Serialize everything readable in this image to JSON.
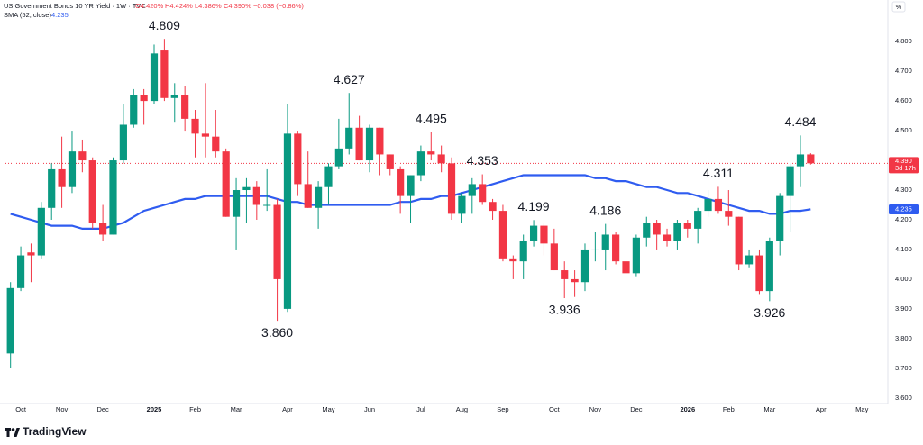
{
  "chart_data": {
    "type": "candlestick",
    "header": {
      "symbol": "US Government Bonds 10 YR Yield · 1W · TVC",
      "open": "O4.420%",
      "high": "H4.424%",
      "low": "L4.386%",
      "close": "C4.390%",
      "change": "−0.038 (−0.86%)"
    },
    "unit": "%",
    "categories": [
      null,
      "Oct",
      null,
      null,
      null,
      "Nov",
      null,
      null,
      null,
      "Dec",
      null,
      null,
      null,
      null,
      "2025",
      null,
      null,
      null,
      "Feb",
      null,
      null,
      null,
      "Mar",
      null,
      null,
      null,
      null,
      "Apr",
      null,
      null,
      null,
      "May",
      null,
      null,
      null,
      "Jun",
      null,
      null,
      null,
      null,
      "Jul",
      null,
      null,
      null,
      "Aug",
      null,
      null,
      null,
      "Sep",
      null,
      null,
      null,
      null,
      "Oct",
      null,
      null,
      null,
      "Nov",
      null,
      null,
      null,
      "Dec",
      null,
      null,
      null,
      null,
      "2026",
      null,
      null,
      null,
      "Feb",
      null,
      null,
      null,
      "Mar",
      null,
      null,
      null,
      null,
      "Apr",
      null,
      null,
      null,
      "May",
      null,
      null
    ],
    "open": [
      3.75,
      3.97,
      4.09,
      4.08,
      4.24,
      4.37,
      4.31,
      4.43,
      4.4,
      4.19,
      4.15,
      4.4,
      4.52,
      4.62,
      4.6,
      4.77,
      4.61,
      4.62,
      4.54,
      4.49,
      4.48,
      4.43,
      4.21,
      4.3,
      4.31,
      4.25,
      4.25,
      3.9,
      4.49,
      4.32,
      4.24,
      4.31,
      4.38,
      4.44,
      4.51,
      4.4,
      4.51,
      4.42,
      4.37,
      4.28,
      4.35,
      4.43,
      4.42,
      4.39,
      4.22,
      4.28,
      4.32,
      4.26,
      4.23,
      4.07,
      4.06,
      4.13,
      4.18,
      4.12,
      4.03,
      4.0,
      3.99,
      4.1,
      4.1,
      4.15,
      4.06,
      4.02,
      4.14,
      4.19,
      4.15,
      4.13,
      4.19,
      4.17,
      4.23,
      4.27,
      4.23,
      4.21,
      4.05,
      4.08,
      3.96,
      4.13,
      4.28,
      4.38,
      4.42,
      null,
      null,
      null,
      null,
      null,
      null,
      null
    ],
    "high": [
      3.99,
      4.11,
      4.12,
      4.26,
      4.39,
      4.48,
      4.5,
      4.47,
      4.41,
      4.25,
      4.41,
      4.59,
      4.64,
      4.64,
      4.79,
      4.809,
      4.66,
      4.65,
      4.57,
      4.66,
      4.57,
      4.44,
      4.34,
      4.34,
      4.33,
      4.37,
      4.27,
      4.59,
      4.5,
      4.43,
      4.33,
      4.39,
      4.54,
      4.627,
      4.55,
      4.52,
      4.51,
      4.42,
      4.38,
      4.35,
      4.45,
      4.495,
      4.45,
      4.41,
      4.29,
      4.34,
      4.353,
      4.27,
      4.25,
      4.08,
      4.15,
      4.199,
      4.19,
      4.17,
      4.06,
      4.03,
      4.12,
      4.16,
      4.186,
      4.16,
      4.06,
      4.15,
      4.21,
      4.2,
      4.17,
      4.2,
      4.2,
      4.24,
      4.3,
      4.311,
      4.3,
      4.21,
      4.1,
      4.1,
      4.14,
      4.29,
      4.39,
      4.484,
      4.424,
      null,
      null,
      null,
      null,
      null,
      null,
      null
    ],
    "low": [
      3.7,
      3.96,
      3.99,
      4.07,
      4.2,
      4.24,
      4.29,
      4.36,
      4.17,
      4.13,
      4.15,
      4.39,
      4.51,
      4.52,
      4.59,
      4.6,
      4.53,
      4.5,
      4.41,
      4.41,
      4.41,
      4.21,
      4.1,
      4.19,
      4.2,
      4.23,
      3.86,
      3.89,
      4.28,
      4.24,
      4.17,
      4.25,
      4.37,
      4.42,
      4.4,
      4.36,
      4.35,
      4.35,
      4.22,
      4.19,
      4.33,
      4.4,
      4.36,
      4.2,
      4.19,
      4.22,
      4.25,
      4.2,
      4.06,
      4.0,
      4.0,
      4.11,
      4.08,
      4.03,
      3.936,
      3.94,
      3.96,
      4.06,
      4.03,
      4.05,
      3.97,
      4.01,
      4.11,
      4.1,
      4.11,
      4.1,
      4.14,
      4.12,
      4.21,
      4.22,
      4.18,
      4.03,
      4.04,
      3.95,
      3.926,
      4.08,
      4.16,
      4.31,
      4.386,
      null,
      null,
      null,
      null,
      null,
      null,
      null
    ],
    "close": [
      3.97,
      4.08,
      4.08,
      4.24,
      4.37,
      4.31,
      4.43,
      4.4,
      4.19,
      4.15,
      4.4,
      4.52,
      4.62,
      4.6,
      4.76,
      4.61,
      4.62,
      4.54,
      4.49,
      4.48,
      4.43,
      4.21,
      4.3,
      4.31,
      4.25,
      4.25,
      4.0,
      4.49,
      4.32,
      4.24,
      4.31,
      4.38,
      4.44,
      4.51,
      4.4,
      4.51,
      4.42,
      4.37,
      4.28,
      4.35,
      4.43,
      4.42,
      4.39,
      4.22,
      4.28,
      4.32,
      4.26,
      4.23,
      4.07,
      4.06,
      4.13,
      4.18,
      4.12,
      4.03,
      4.0,
      3.99,
      4.1,
      4.1,
      4.15,
      4.06,
      4.02,
      4.14,
      4.19,
      4.15,
      4.13,
      4.19,
      4.17,
      4.23,
      4.27,
      4.23,
      4.21,
      4.05,
      4.08,
      3.96,
      4.13,
      4.28,
      4.38,
      4.42,
      4.39,
      null,
      null,
      null,
      null,
      null,
      null,
      null
    ],
    "up_color": "#089981",
    "down_color": "#f23645",
    "sma": {
      "name": "SMA (52, close)",
      "color": "#2f5cf0",
      "values": [
        4.22,
        4.21,
        4.2,
        4.19,
        4.18,
        4.18,
        4.18,
        4.17,
        4.17,
        4.17,
        4.18,
        4.19,
        4.21,
        4.23,
        4.24,
        4.25,
        4.26,
        4.27,
        4.27,
        4.28,
        4.28,
        4.28,
        4.28,
        4.28,
        4.28,
        4.28,
        4.27,
        4.26,
        4.26,
        4.25,
        4.25,
        4.25,
        4.25,
        4.25,
        4.25,
        4.25,
        4.25,
        4.25,
        4.26,
        4.26,
        4.27,
        4.27,
        4.28,
        4.28,
        4.29,
        4.3,
        4.31,
        4.32,
        4.33,
        4.34,
        4.35,
        4.35,
        4.35,
        4.35,
        4.35,
        4.35,
        4.35,
        4.34,
        4.34,
        4.33,
        4.33,
        4.32,
        4.31,
        4.31,
        4.3,
        4.29,
        4.29,
        4.28,
        4.27,
        4.26,
        4.25,
        4.24,
        4.23,
        4.23,
        4.22,
        4.22,
        4.23,
        4.23,
        4.235,
        null,
        null,
        null,
        null,
        null,
        null,
        null
      ]
    },
    "last_price": {
      "value": 4.39,
      "label": "4.390"
    },
    "countdown": "3d 17h",
    "annotations": [
      4.809,
      {
        "value": 3.86,
        "label": "3.860"
      },
      4.627,
      4.495,
      4.353,
      4.199,
      4.186,
      3.936,
      4.311,
      4.484,
      3.926
    ],
    "ylim": [
      3.56,
      4.94
    ],
    "yticks": [
      {
        "value": 3.6,
        "label": "3.600"
      },
      {
        "value": 3.7,
        "label": "3.700"
      },
      {
        "value": 3.8,
        "label": "3.800"
      },
      {
        "value": 3.9,
        "label": "3.900"
      },
      {
        "value": 4.0,
        "label": "4.000"
      },
      {
        "value": 4.1,
        "label": "4.100"
      },
      {
        "value": 4.2,
        "label": "4.200"
      },
      {
        "value": 4.3,
        "label": "4.300"
      },
      {
        "value": 4.4,
        "label": "4.400"
      },
      {
        "value": 4.5,
        "label": "4.500"
      },
      {
        "value": 4.6,
        "label": "4.600"
      },
      {
        "value": 4.7,
        "label": "4.700"
      },
      {
        "value": 4.8,
        "label": "4.800"
      }
    ],
    "grid": false
  },
  "brand": "TradingView"
}
